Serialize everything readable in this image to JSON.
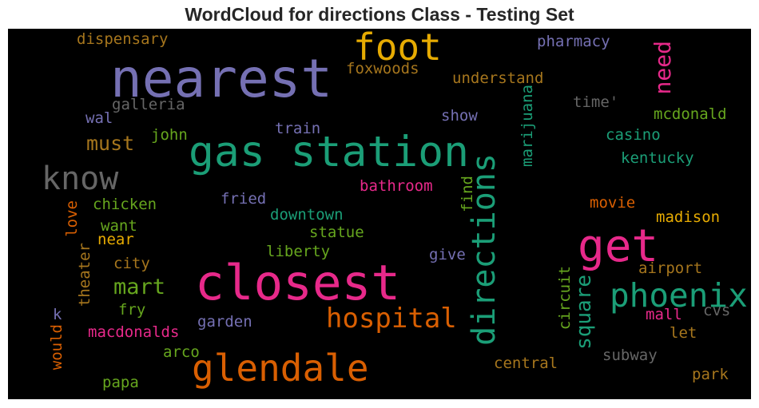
{
  "title": "WordCloud for directions Class - Testing Set",
  "palette": {
    "purple": "#7570b3",
    "green": "#1b9e77",
    "orange": "#d95f02",
    "pink": "#e7298a",
    "olive": "#66a61e",
    "gold": "#e6ab02",
    "brown": "#a6761d",
    "gray": "#666666"
  },
  "words": [
    {
      "text": "nearest"
    },
    {
      "text": "foot"
    },
    {
      "text": "gas station"
    },
    {
      "text": "closest"
    },
    {
      "text": "glendale"
    },
    {
      "text": "know"
    },
    {
      "text": "get"
    },
    {
      "text": "directions"
    },
    {
      "text": "phoenix"
    },
    {
      "text": "hospital"
    },
    {
      "text": "square"
    },
    {
      "text": "need"
    },
    {
      "text": "mart"
    },
    {
      "text": "must"
    },
    {
      "text": "dispensary"
    },
    {
      "text": "pharmacy"
    },
    {
      "text": "foxwoods"
    },
    {
      "text": "understand"
    },
    {
      "text": "galleria"
    },
    {
      "text": "time'"
    },
    {
      "text": "mcdonald"
    },
    {
      "text": "wal"
    },
    {
      "text": "show"
    },
    {
      "text": "train"
    },
    {
      "text": "john"
    },
    {
      "text": "casino"
    },
    {
      "text": "kentucky"
    },
    {
      "text": "marijuana"
    },
    {
      "text": "find"
    },
    {
      "text": "bathroom"
    },
    {
      "text": "chicken"
    },
    {
      "text": "fried"
    },
    {
      "text": "downtown"
    },
    {
      "text": "movie"
    },
    {
      "text": "want"
    },
    {
      "text": "madison"
    },
    {
      "text": "love"
    },
    {
      "text": "near"
    },
    {
      "text": "statue"
    },
    {
      "text": "city"
    },
    {
      "text": "liberty"
    },
    {
      "text": "give"
    },
    {
      "text": "airport"
    },
    {
      "text": "theater"
    },
    {
      "text": "circuit"
    },
    {
      "text": "fry"
    },
    {
      "text": "k"
    },
    {
      "text": "mall"
    },
    {
      "text": "cvs"
    },
    {
      "text": "macdonalds"
    },
    {
      "text": "garden"
    },
    {
      "text": "let"
    },
    {
      "text": "would"
    },
    {
      "text": "arco"
    },
    {
      "text": "subway"
    },
    {
      "text": "central"
    },
    {
      "text": "park"
    },
    {
      "text": "papa"
    }
  ]
}
